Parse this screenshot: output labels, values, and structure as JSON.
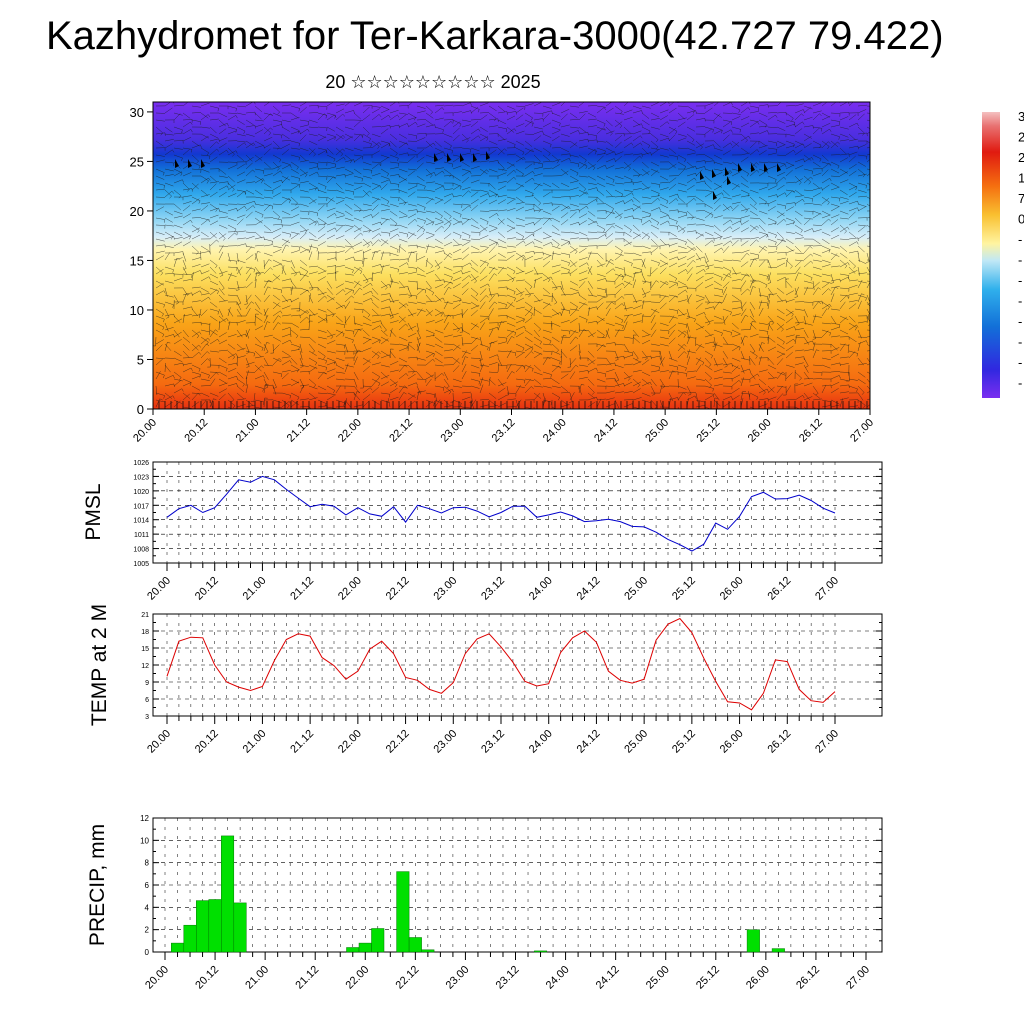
{
  "header": {
    "title": "Kazhydromet for Ter-Karkara-3000(42.727 79.422)",
    "subtitle": "20 ☆☆☆☆☆☆☆☆☆ 2025"
  },
  "colors": {
    "pmsl_line": "#0000cc",
    "temp_line": "#dd0000",
    "precip_bar": "#00e000",
    "precip_bar_edge": "#007700"
  },
  "chart_data": [
    {
      "type": "heatmap",
      "name": "cross-section",
      "x_range": [
        0,
        168
      ],
      "ylim": [
        0,
        31
      ],
      "y_ticks": [
        0,
        5,
        10,
        15,
        20,
        25,
        30
      ],
      "x_tick_labels": [
        "20.00",
        "20.12",
        "21.00",
        "21.12",
        "22.00",
        "22.12",
        "23.00",
        "23.12",
        "24.00",
        "24.12",
        "25.00",
        "25.12",
        "26.00",
        "26.12",
        "27.00"
      ],
      "x_tick_positions": [
        0,
        12,
        24,
        36,
        48,
        60,
        72,
        84,
        96,
        108,
        120,
        132,
        144,
        156,
        168
      ],
      "colorbar_partial_labels": [
        "3",
        "2",
        "2",
        "1",
        "7",
        "0",
        "-",
        "-",
        "-",
        "-",
        "-",
        "-",
        "-",
        "-"
      ]
    },
    {
      "type": "line",
      "name": "pmsl",
      "ylabel": "PMSL",
      "ylim": [
        1005,
        1026
      ],
      "y_ticks": [
        1005,
        1008,
        1011,
        1014,
        1017,
        1020,
        1023,
        1026
      ],
      "x_tick_labels": [
        "20.00",
        "20.12",
        "21.00",
        "21.12",
        "22.00",
        "22.12",
        "23.00",
        "23.12",
        "24.00",
        "24.12",
        "25.00",
        "25.12",
        "26.00",
        "26.12",
        "27.00"
      ],
      "x_tick_positions": [
        0,
        12,
        24,
        36,
        48,
        60,
        72,
        84,
        96,
        108,
        120,
        132,
        144,
        156,
        168
      ],
      "x": [
        0,
        3,
        6,
        9,
        12,
        15,
        18,
        21,
        24,
        27,
        30,
        33,
        36,
        39,
        42,
        45,
        48,
        51,
        54,
        57,
        60,
        63,
        66,
        69,
        72,
        75,
        78,
        81,
        84,
        87,
        90,
        93,
        96,
        99,
        102,
        105,
        108,
        111,
        114,
        117,
        120,
        123,
        126,
        129,
        132,
        135,
        138,
        141,
        144,
        147,
        150,
        153,
        156,
        159,
        162,
        165,
        168
      ],
      "values": [
        1014.5,
        1016.3,
        1017,
        1015.5,
        1016.5,
        1019.3,
        1022.3,
        1021.8,
        1023,
        1022.3,
        1020.3,
        1018.5,
        1016.7,
        1017.2,
        1016.8,
        1015,
        1016.5,
        1015.2,
        1014.7,
        1016.7,
        1013.5,
        1017,
        1016.3,
        1015.4,
        1016.5,
        1016.6,
        1015.8,
        1014.6,
        1015.5,
        1016.8,
        1016.8,
        1014.5,
        1015,
        1015.6,
        1014.8,
        1013.6,
        1013.8,
        1014.1,
        1013.6,
        1012.6,
        1012.5,
        1011.4,
        1009.9,
        1008.8,
        1007.5,
        1008.9,
        1013.3,
        1012,
        1014.7,
        1018.8,
        1019.7,
        1018.3,
        1018.4,
        1019.1,
        1018,
        1016.4,
        1015.4
      ]
    },
    {
      "type": "line",
      "name": "temp",
      "ylabel": "TEMP at 2 M",
      "ylim": [
        3,
        21
      ],
      "y_ticks": [
        3,
        6,
        9,
        12,
        15,
        18,
        21
      ],
      "x_tick_labels": [
        "20.00",
        "20.12",
        "21.00",
        "21.12",
        "22.00",
        "22.12",
        "23.00",
        "23.12",
        "24.00",
        "24.12",
        "25.00",
        "25.12",
        "26.00",
        "26.12",
        "27.00"
      ],
      "x_tick_positions": [
        0,
        12,
        24,
        36,
        48,
        60,
        72,
        84,
        96,
        108,
        120,
        132,
        144,
        156,
        168
      ],
      "x": [
        0,
        3,
        6,
        9,
        12,
        15,
        18,
        21,
        24,
        27,
        30,
        33,
        36,
        39,
        42,
        45,
        48,
        51,
        54,
        57,
        60,
        63,
        66,
        69,
        72,
        75,
        78,
        81,
        84,
        87,
        90,
        93,
        96,
        99,
        102,
        105,
        108,
        111,
        114,
        117,
        120,
        123,
        126,
        129,
        132,
        135,
        138,
        141,
        144,
        147,
        150,
        153,
        156,
        159,
        162,
        165,
        168
      ],
      "values": [
        10,
        16.2,
        16.9,
        16.8,
        12,
        9,
        8.1,
        7.5,
        8.2,
        12.8,
        16.5,
        17.5,
        17.1,
        13.3,
        11.9,
        9.5,
        10.9,
        14.8,
        16.2,
        14,
        9.8,
        9.3,
        7.7,
        7,
        8.9,
        14,
        16.6,
        17.5,
        15.2,
        12.5,
        9.1,
        8.3,
        8.7,
        14.2,
        16.8,
        18,
        16,
        10.9,
        9.3,
        8.8,
        9.5,
        16.4,
        19.2,
        20.2,
        17.7,
        13.2,
        9.1,
        5.5,
        5.3,
        4.1,
        7,
        12.9,
        12.6,
        7.7,
        5.7,
        5.4,
        7.3
      ]
    },
    {
      "type": "bar",
      "name": "precip",
      "ylabel": "PRECIP, mm",
      "ylim": [
        0,
        12
      ],
      "y_ticks": [
        0,
        2,
        4,
        6,
        8,
        10,
        12
      ],
      "x_tick_labels": [
        "20.00",
        "20.12",
        "21.00",
        "21.12",
        "22.00",
        "22.12",
        "23.00",
        "23.12",
        "24.00",
        "24.12",
        "25.00",
        "25.12",
        "26.00",
        "26.12",
        "27.00"
      ],
      "x_tick_positions": [
        0,
        12,
        24,
        36,
        48,
        60,
        72,
        84,
        96,
        108,
        120,
        132,
        144,
        156,
        168
      ],
      "bar_width_hours": 3,
      "x": [
        3,
        6,
        9,
        12,
        15,
        18,
        45,
        48,
        51,
        57,
        60,
        63,
        90,
        141,
        147
      ],
      "values": [
        0.8,
        2.4,
        4.6,
        4.7,
        10.4,
        4.4,
        0.4,
        0.8,
        2.1,
        7.2,
        1.3,
        0.2,
        0.1,
        2,
        0.3
      ]
    }
  ]
}
